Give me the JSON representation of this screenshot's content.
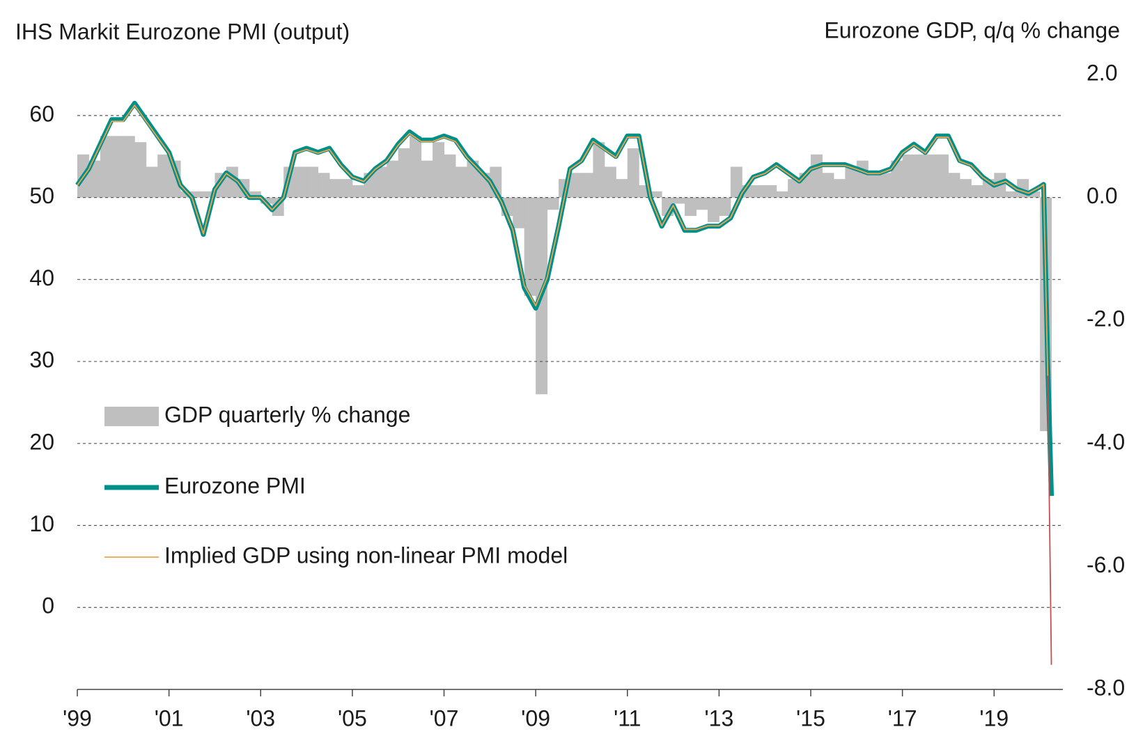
{
  "chart_data": {
    "type": "combo",
    "title": "IHS Markit Eurozone PMI (output)",
    "y2_title": "Eurozone GDP, q/q % change",
    "xlim": [
      1999,
      2020.5
    ],
    "xticks": [
      {
        "value": 1999,
        "label": "'99"
      },
      {
        "value": 2001,
        "label": "'01"
      },
      {
        "value": 2003,
        "label": "'03"
      },
      {
        "value": 2005,
        "label": "'05"
      },
      {
        "value": 2007,
        "label": "'07"
      },
      {
        "value": 2009,
        "label": "'09"
      },
      {
        "value": 2011,
        "label": "'11"
      },
      {
        "value": 2013,
        "label": "'13"
      },
      {
        "value": 2015,
        "label": "'15"
      },
      {
        "value": 2017,
        "label": "'17"
      },
      {
        "value": 2019,
        "label": "'19"
      }
    ],
    "ylim": [
      -10,
      65
    ],
    "yticks": [
      0,
      10,
      20,
      30,
      40,
      50,
      60
    ],
    "y2lim": [
      -8,
      2
    ],
    "y2ticks": [
      {
        "value": 2,
        "label": "2.0"
      },
      {
        "value": 0,
        "label": "0.0"
      },
      {
        "value": -2,
        "label": "-2.0"
      },
      {
        "value": -4,
        "label": "-4.0"
      },
      {
        "value": -6,
        "label": "-6.0"
      },
      {
        "value": -8,
        "label": "-8.0"
      }
    ],
    "grid": true,
    "legend": "left",
    "series": [
      {
        "name": "GDP quarterly % change",
        "kind": "bar",
        "axis": "y2",
        "color": "#bfbfbf",
        "bar_width": 0.25,
        "x": [
          1999,
          1999.25,
          1999.5,
          1999.75,
          2000,
          2000.25,
          2000.5,
          2000.75,
          2001,
          2001.25,
          2001.5,
          2001.75,
          2002,
          2002.25,
          2002.5,
          2002.75,
          2003,
          2003.25,
          2003.5,
          2003.75,
          2004,
          2004.25,
          2004.5,
          2004.75,
          2005,
          2005.25,
          2005.5,
          2005.75,
          2006,
          2006.25,
          2006.5,
          2006.75,
          2007,
          2007.25,
          2007.5,
          2007.75,
          2008,
          2008.25,
          2008.5,
          2008.75,
          2009,
          2009.25,
          2009.5,
          2009.75,
          2010,
          2010.25,
          2010.5,
          2010.75,
          2011,
          2011.25,
          2011.5,
          2011.75,
          2012,
          2012.25,
          2012.5,
          2012.75,
          2013,
          2013.25,
          2013.5,
          2013.75,
          2014,
          2014.25,
          2014.5,
          2014.75,
          2015,
          2015.25,
          2015.5,
          2015.75,
          2016,
          2016.25,
          2016.5,
          2016.75,
          2017,
          2017.25,
          2017.5,
          2017.75,
          2018,
          2018.25,
          2018.5,
          2018.75,
          2019,
          2019.25,
          2019.5,
          2019.75,
          2020
        ],
        "values": [
          0.7,
          0.6,
          1.0,
          1.0,
          1.0,
          0.9,
          0.5,
          0.7,
          0.6,
          0.1,
          0.1,
          0.1,
          0.4,
          0.5,
          0.3,
          0.1,
          -0.1,
          -0.3,
          0.5,
          0.5,
          0.5,
          0.4,
          0.3,
          0.3,
          0.2,
          0.4,
          0.5,
          0.6,
          0.8,
          1.0,
          0.6,
          0.9,
          0.7,
          0.5,
          0.6,
          0.4,
          0.5,
          -0.3,
          -0.5,
          -1.6,
          -3.2,
          -0.2,
          0.3,
          0.4,
          0.4,
          0.9,
          0.5,
          0.3,
          0.8,
          0.2,
          0.1,
          -0.3,
          -0.1,
          -0.3,
          -0.2,
          -0.4,
          -0.3,
          0.5,
          0.2,
          0.2,
          0.2,
          0.1,
          0.3,
          0.4,
          0.7,
          0.4,
          0.3,
          0.5,
          0.6,
          0.4,
          0.4,
          0.6,
          0.7,
          0.7,
          0.7,
          0.7,
          0.4,
          0.3,
          0.2,
          0.3,
          0.4,
          0.1,
          0.3,
          0.1,
          -3.8
        ]
      },
      {
        "name": "Eurozone PMI",
        "kind": "line",
        "axis": "y",
        "color": "#00908a",
        "width": 7,
        "x": [
          1999,
          1999.25,
          1999.5,
          1999.75,
          2000,
          2000.25,
          2000.5,
          2000.75,
          2001,
          2001.25,
          2001.5,
          2001.75,
          2002,
          2002.25,
          2002.5,
          2002.75,
          2003,
          2003.25,
          2003.5,
          2003.75,
          2004,
          2004.25,
          2004.5,
          2004.75,
          2005,
          2005.25,
          2005.5,
          2005.75,
          2006,
          2006.25,
          2006.5,
          2006.75,
          2007,
          2007.25,
          2007.5,
          2007.75,
          2008,
          2008.25,
          2008.5,
          2008.75,
          2009,
          2009.25,
          2009.5,
          2009.75,
          2010,
          2010.25,
          2010.5,
          2010.75,
          2011,
          2011.25,
          2011.5,
          2011.75,
          2012,
          2012.25,
          2012.5,
          2012.75,
          2013,
          2013.25,
          2013.5,
          2013.75,
          2014,
          2014.25,
          2014.5,
          2014.75,
          2015,
          2015.25,
          2015.5,
          2015.75,
          2016,
          2016.25,
          2016.5,
          2016.75,
          2017,
          2017.25,
          2017.5,
          2017.75,
          2018,
          2018.25,
          2018.5,
          2018.75,
          2019,
          2019.25,
          2019.5,
          2019.75,
          2020,
          2020.08,
          2020.17,
          2020.25
        ],
        "values": [
          51.5,
          53.5,
          56.5,
          59.5,
          59.5,
          61.5,
          59.5,
          57.5,
          55.5,
          51.5,
          50,
          45.5,
          51,
          53,
          52,
          50,
          50,
          48.5,
          50,
          55.5,
          56,
          55.5,
          56,
          54,
          52.5,
          52,
          53.5,
          54.5,
          56.5,
          58,
          57,
          57,
          57.5,
          57,
          55,
          53.5,
          52,
          49.5,
          46,
          39,
          36.5,
          40,
          46.5,
          53.5,
          54.5,
          57,
          56,
          55,
          57.5,
          57.5,
          50,
          46.5,
          49,
          46,
          46,
          46.5,
          46.5,
          47.5,
          50.5,
          52.5,
          53,
          54,
          53,
          52,
          53.5,
          54,
          54,
          54,
          53.5,
          53,
          53,
          53.5,
          55.5,
          56.5,
          55.5,
          57.5,
          57.5,
          54.5,
          54,
          52.5,
          51.5,
          52,
          51,
          50.5,
          51.3,
          51.6,
          29.7,
          13.6
        ]
      },
      {
        "name": "Implied GDP using non-linear PMI model",
        "kind": "line",
        "axis": "y2",
        "color": "#f5a04a",
        "end_color": "#c0504d",
        "width": 1.8,
        "x": [
          1999,
          1999.25,
          1999.5,
          1999.75,
          2000,
          2000.25,
          2000.5,
          2000.75,
          2001,
          2001.25,
          2001.5,
          2001.75,
          2002,
          2002.25,
          2002.5,
          2002.75,
          2003,
          2003.25,
          2003.5,
          2003.75,
          2004,
          2004.25,
          2004.5,
          2004.75,
          2005,
          2005.25,
          2005.5,
          2005.75,
          2006,
          2006.25,
          2006.5,
          2006.75,
          2007,
          2007.25,
          2007.5,
          2007.75,
          2008,
          2008.25,
          2008.5,
          2008.75,
          2009,
          2009.25,
          2009.5,
          2009.75,
          2010,
          2010.25,
          2010.5,
          2010.75,
          2011,
          2011.25,
          2011.5,
          2011.75,
          2012,
          2012.25,
          2012.5,
          2012.75,
          2013,
          2013.25,
          2013.5,
          2013.75,
          2014,
          2014.25,
          2014.5,
          2014.75,
          2015,
          2015.25,
          2015.5,
          2015.75,
          2016,
          2016.25,
          2016.5,
          2016.75,
          2017,
          2017.25,
          2017.5,
          2017.75,
          2018,
          2018.25,
          2018.5,
          2018.75,
          2019,
          2019.25,
          2019.5,
          2019.75,
          2020,
          2020.08,
          2020.17,
          2020.25
        ],
        "values": [
          0.2,
          0.46,
          0.85,
          1.24,
          1.24,
          1.5,
          1.24,
          0.98,
          0.72,
          0.2,
          0,
          -0.59,
          0.13,
          0.39,
          0.26,
          0,
          0,
          -0.2,
          0,
          0.72,
          0.78,
          0.72,
          0.78,
          0.52,
          0.33,
          0.26,
          0.46,
          0.59,
          0.85,
          1.04,
          0.91,
          0.91,
          0.98,
          0.91,
          0.65,
          0.46,
          0.26,
          -0.07,
          -0.52,
          -1.43,
          -1.76,
          -1.3,
          -0.46,
          0.46,
          0.59,
          0.91,
          0.78,
          0.65,
          0.98,
          0.98,
          0,
          -0.46,
          -0.13,
          -0.52,
          -0.52,
          -0.46,
          -0.46,
          -0.33,
          0.07,
          0.33,
          0.39,
          0.52,
          0.39,
          0.26,
          0.46,
          0.52,
          0.52,
          0.52,
          0.46,
          0.39,
          0.39,
          0.46,
          0.72,
          0.85,
          0.72,
          0.98,
          0.98,
          0.59,
          0.52,
          0.33,
          0.2,
          0.26,
          0.13,
          0.07,
          0.17,
          0.21,
          -2.9,
          -7.6
        ]
      }
    ]
  }
}
